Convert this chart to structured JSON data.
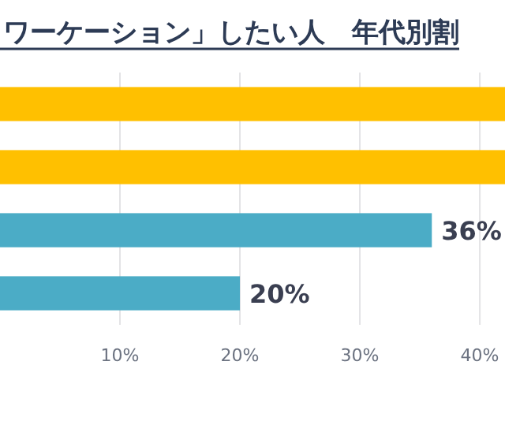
{
  "chart_data": {
    "type": "bar",
    "orientation": "horizontal",
    "title": "ワーケーション」したい人　年代別割",
    "categories": [
      null,
      null,
      null,
      null
    ],
    "values": [
      42.1,
      42.1,
      36,
      20
    ],
    "colors": [
      "#ffc000",
      "#ffc000",
      "#4bacc6",
      "#4bacc6"
    ],
    "value_labels": [
      null,
      null,
      "36%",
      "20%"
    ],
    "xlim": [
      0,
      42.1
    ],
    "xticks": [
      {
        "value": 10,
        "label": "10%"
      },
      {
        "value": 20,
        "label": "20%"
      },
      {
        "value": 30,
        "label": "30%"
      },
      {
        "value": 40,
        "label": "40%"
      }
    ],
    "grid": "x"
  }
}
